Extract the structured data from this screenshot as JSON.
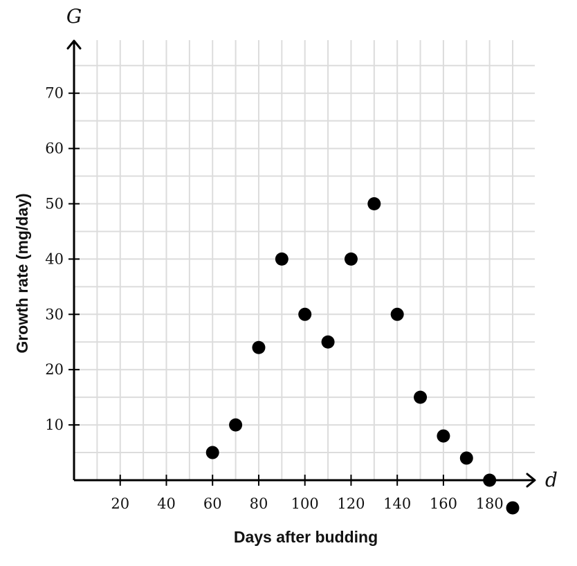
{
  "chart_data": {
    "type": "scatter",
    "title": "",
    "xlabel": "Days after budding",
    "ylabel": "Growth rate (mg/day)",
    "x_variable": "d",
    "y_variable": "G",
    "xlim": [
      0,
      200
    ],
    "ylim": [
      0,
      80
    ],
    "x_gridline_step": 10,
    "y_gridline_step": 5,
    "x_ticks": [
      20,
      40,
      60,
      80,
      100,
      120,
      140,
      160,
      180
    ],
    "y_ticks": [
      10,
      20,
      30,
      40,
      50,
      60,
      70
    ],
    "grid": true,
    "series": [
      {
        "name": "observations",
        "color": "#000000",
        "points": [
          {
            "x": 60,
            "y": 5
          },
          {
            "x": 70,
            "y": 10
          },
          {
            "x": 80,
            "y": 24
          },
          {
            "x": 90,
            "y": 40
          },
          {
            "x": 100,
            "y": 30
          },
          {
            "x": 110,
            "y": 25
          },
          {
            "x": 120,
            "y": 40
          },
          {
            "x": 130,
            "y": 50
          },
          {
            "x": 140,
            "y": 30
          },
          {
            "x": 150,
            "y": 15
          },
          {
            "x": 160,
            "y": 8
          },
          {
            "x": 170,
            "y": 4
          },
          {
            "x": 180,
            "y": 0
          },
          {
            "x": 190,
            "y": -5
          }
        ]
      }
    ]
  }
}
